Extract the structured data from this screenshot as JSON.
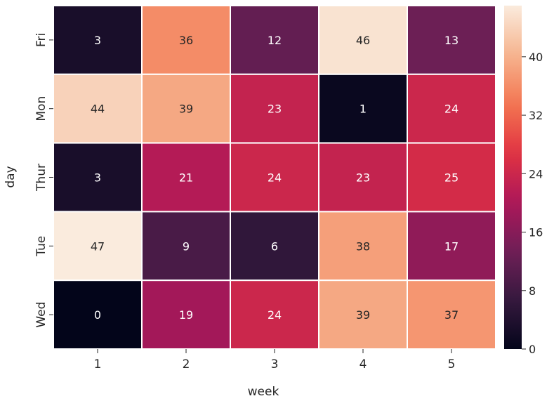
{
  "chart_data": {
    "type": "heatmap",
    "title": "",
    "xlabel": "week",
    "ylabel": "day",
    "x_categories": [
      "1",
      "2",
      "3",
      "4",
      "5"
    ],
    "y_categories": [
      "Fri",
      "Mon",
      "Thur",
      "Tue",
      "Wed"
    ],
    "values": [
      [
        3,
        36,
        12,
        46,
        13
      ],
      [
        44,
        39,
        23,
        1,
        24
      ],
      [
        3,
        21,
        24,
        23,
        25
      ],
      [
        47,
        9,
        6,
        38,
        17
      ],
      [
        0,
        19,
        24,
        39,
        37
      ]
    ],
    "annotated": true,
    "colormap": "rocket",
    "colormap_stops": [
      "#03051a",
      "#35193e",
      "#701f57",
      "#ad1759",
      "#e13342",
      "#f37651",
      "#f6b48f",
      "#faebdd"
    ],
    "cell_border_color": "#ffffff",
    "colorbar": {
      "range": [
        0,
        47
      ],
      "ticks": [
        0,
        8,
        16,
        24,
        32,
        40
      ]
    }
  }
}
